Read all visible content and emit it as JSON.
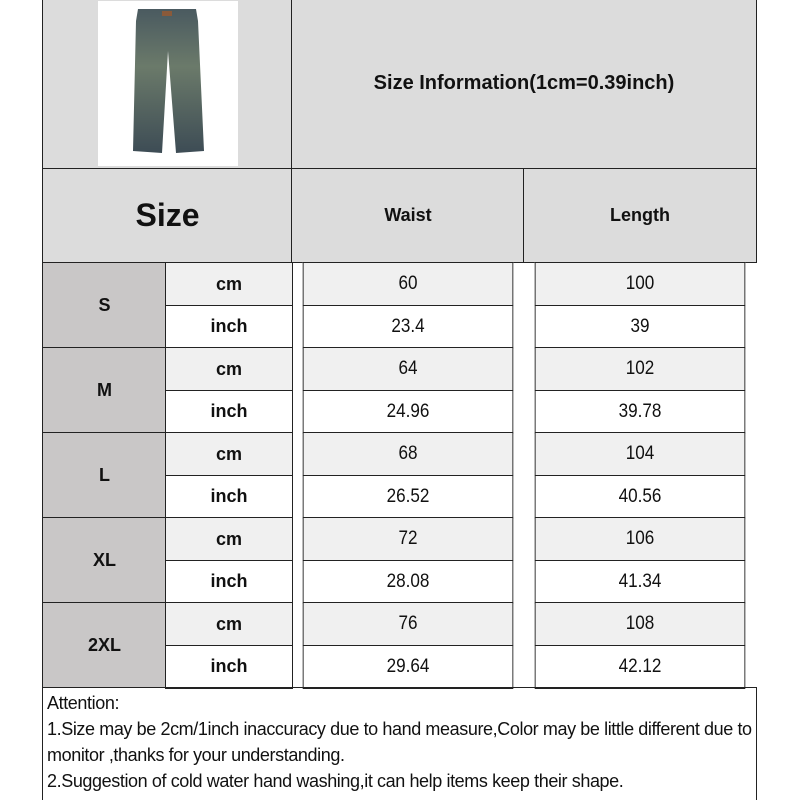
{
  "header": {
    "title": "Size Information(1cm=0.39inch)",
    "size_label": "Size",
    "columns": [
      "Waist",
      "Length"
    ]
  },
  "product_image": "jeans-image",
  "units": [
    "cm",
    "inch"
  ],
  "rows": [
    {
      "size": "S",
      "cm": [
        "60",
        "100"
      ],
      "inch": [
        "23.4",
        "39"
      ]
    },
    {
      "size": "M",
      "cm": [
        "64",
        "102"
      ],
      "inch": [
        "24.96",
        "39.78"
      ]
    },
    {
      "size": "L",
      "cm": [
        "68",
        "104"
      ],
      "inch": [
        "26.52",
        "40.56"
      ]
    },
    {
      "size": "XL",
      "cm": [
        "72",
        "106"
      ],
      "inch": [
        "28.08",
        "41.34"
      ]
    },
    {
      "size": "2XL",
      "cm": [
        "76",
        "108"
      ],
      "inch": [
        "29.64",
        "42.12"
      ]
    }
  ],
  "attention": {
    "title": "Attention:",
    "lines": [
      "1.Size may be 2cm/1inch inaccuracy due to hand measure,Color may be little different due to monitor ,thanks for your understanding.",
      "2.Suggestion of cold water hand washing,it can help items keep their shape."
    ]
  }
}
